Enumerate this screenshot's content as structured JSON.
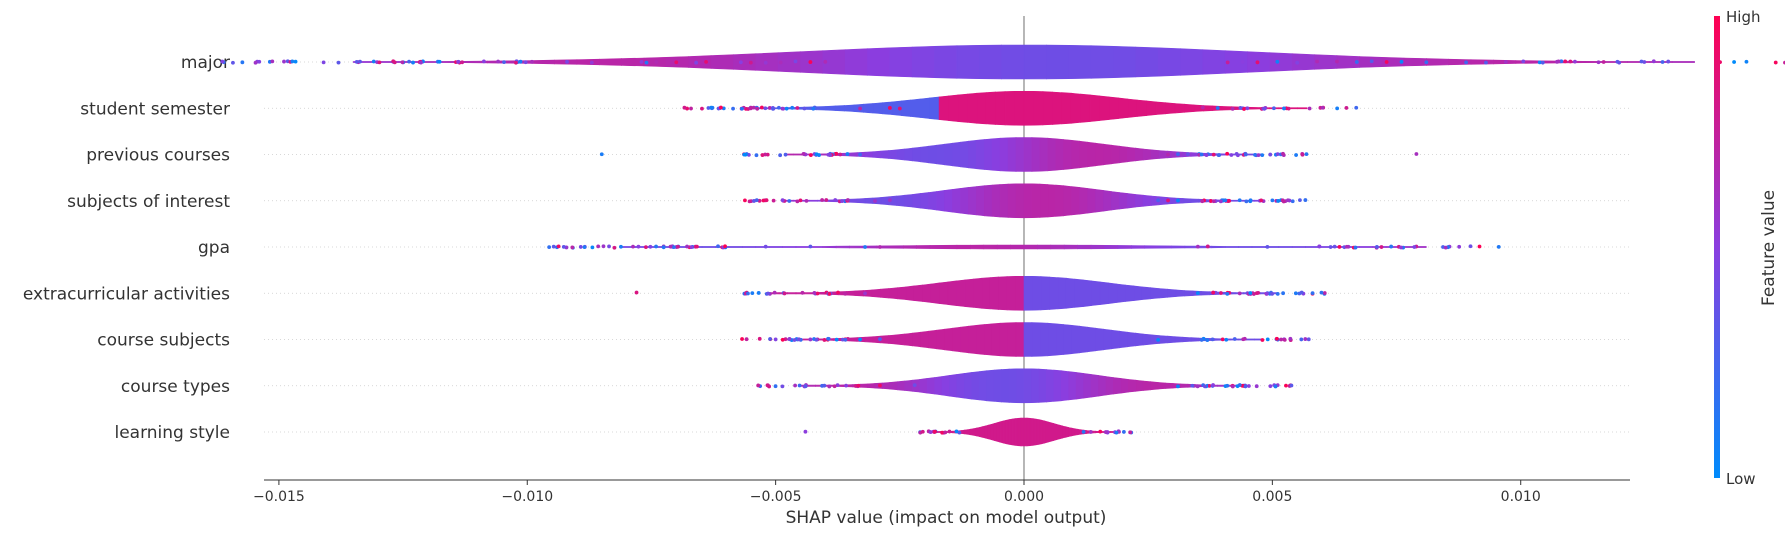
{
  "chart_data": {
    "type": "violin",
    "features": [
      {
        "name": "major",
        "spread": 0.0045,
        "lo": -0.0141,
        "hi": 0.011,
        "n_out": 70,
        "outliers_left": [
          -0.0141,
          -0.0138,
          -0.0134,
          -0.0127,
          -0.0123,
          -0.0121,
          -0.0118,
          -0.0102,
          -0.0092,
          -0.0087,
          -0.0077,
          -0.0076,
          -0.0074,
          -0.007,
          -0.0066,
          -0.0064,
          -0.0057,
          -0.0055,
          -0.0052,
          -0.0049,
          -0.0046,
          -0.0043,
          -0.004
        ],
        "outliers_right": [
          0.0041,
          0.0044,
          0.0047,
          0.0051,
          0.0055,
          0.0059,
          0.0063,
          0.0067,
          0.007,
          0.0073,
          0.0076,
          0.0081,
          0.0089,
          0.0093,
          0.0097,
          0.011
        ],
        "color_trend": "mixed"
      },
      {
        "name": "student semester",
        "spread": 0.0019,
        "lo": -0.0033,
        "hi": 0.0039,
        "n_out": 60,
        "outliers_left": [
          -0.0033,
          -0.0027,
          -0.0025
        ],
        "outliers_right": [
          0.0036,
          0.0039
        ],
        "color_trend": "low-left-high-center"
      },
      {
        "name": "previous courses",
        "spread": 0.0016,
        "lo": -0.0085,
        "hi": 0.0079,
        "n_out": 55,
        "outliers_left": [
          -0.0085,
          -0.0048,
          -0.0044,
          -0.0039,
          -0.0037,
          -0.0033
        ],
        "outliers_right": [
          0.0029,
          0.0031,
          0.0033,
          0.0079
        ],
        "color_trend": "mixed"
      },
      {
        "name": "subjects of interest",
        "spread": 0.0016,
        "lo": -0.0045,
        "hi": 0.004,
        "n_out": 55,
        "outliers_left": [
          -0.0045,
          -0.0038,
          -0.0036,
          -0.003,
          -0.0027
        ],
        "outliers_right": [
          0.0027,
          0.0029,
          0.0031,
          0.004
        ],
        "color_trend": "mixed"
      },
      {
        "name": "gpa",
        "spread": 0.0027,
        "lo": -0.0052,
        "hi": 0.0049,
        "n_out": 70,
        "outliers_left": [
          -0.0052,
          -0.0043,
          -0.0032,
          -0.0029
        ],
        "outliers_right": [
          0.0035,
          0.0037,
          0.0049
        ],
        "color_trend": "line"
      },
      {
        "name": "extracurricular activities",
        "spread": 0.0017,
        "lo": -0.0078,
        "hi": 0.0045,
        "n_out": 55,
        "outliers_left": [
          -0.0078,
          -0.0056,
          -0.0036,
          -0.0032
        ],
        "outliers_right": [
          0.0035,
          0.0041,
          0.0045
        ],
        "color_trend": "high-left-low-right"
      },
      {
        "name": "course subjects",
        "spread": 0.0016,
        "lo": -0.005,
        "hi": 0.004,
        "n_out": 50,
        "outliers_left": [
          -0.005,
          -0.0033,
          -0.0029
        ],
        "outliers_right": [
          0.0027,
          0.004
        ],
        "color_trend": "high-left-low-right"
      },
      {
        "name": "course types",
        "spread": 0.0015,
        "lo": -0.0029,
        "hi": 0.0043,
        "n_out": 50,
        "outliers_left": [
          -0.0029,
          -0.0022
        ],
        "outliers_right": [
          0.0031,
          0.0042,
          0.0043
        ],
        "color_trend": "mixed"
      },
      {
        "name": "learning style",
        "spread": 0.0006,
        "lo": -0.0044,
        "hi": 0.0012,
        "n_out": 25,
        "outliers_left": [
          -0.0044,
          -0.0018,
          -0.0015,
          -0.0013
        ],
        "outliers_right": [
          0.0012
        ],
        "color_trend": "high-center"
      }
    ],
    "xlabel": "SHAP value (impact on model output)",
    "xlim": [
      -0.0153,
      0.0122
    ],
    "xticks": [
      -0.015,
      -0.01,
      -0.005,
      0.0,
      0.005,
      0.01
    ],
    "xtick_labels": [
      "−0.015",
      "−0.010",
      "−0.005",
      "0.000",
      "0.005",
      "0.010"
    ],
    "colorbar": {
      "label": "Feature value",
      "high": "High",
      "low": "Low",
      "high_color": "#ff0052",
      "mid_color": "#8a2be2",
      "low_color": "#008bfb"
    },
    "grid": "dotted rows"
  }
}
